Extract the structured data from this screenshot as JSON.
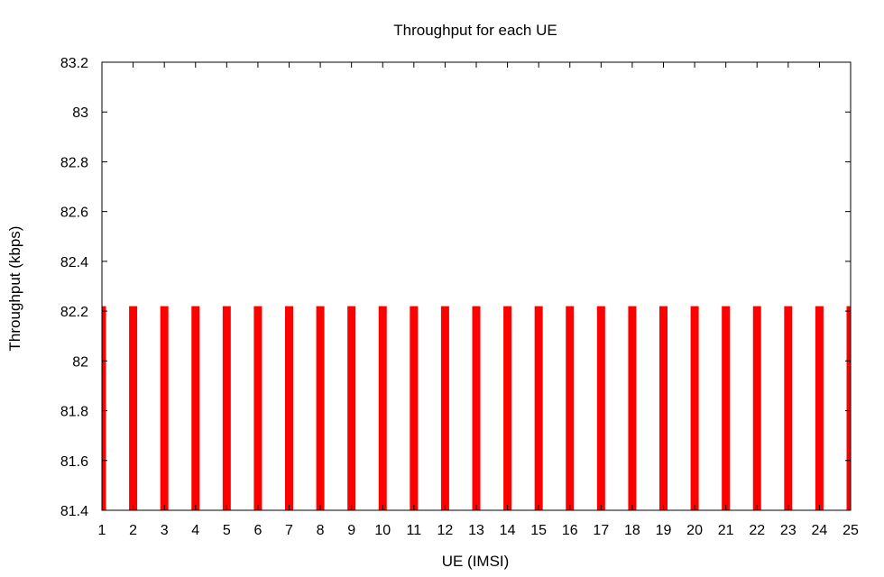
{
  "chart_data": {
    "type": "bar",
    "title": "Throughput for each UE",
    "xlabel": "UE (IMSI)",
    "ylabel": "Throughput (kbps)",
    "categories": [
      "1",
      "2",
      "3",
      "4",
      "5",
      "6",
      "7",
      "8",
      "9",
      "10",
      "11",
      "12",
      "13",
      "14",
      "15",
      "16",
      "17",
      "18",
      "19",
      "20",
      "21",
      "22",
      "23",
      "24",
      "25"
    ],
    "x": [
      1,
      2,
      3,
      4,
      5,
      6,
      7,
      8,
      9,
      10,
      11,
      12,
      13,
      14,
      15,
      16,
      17,
      18,
      19,
      20,
      21,
      22,
      23,
      24,
      25
    ],
    "values": [
      82.22,
      82.22,
      82.22,
      82.22,
      82.22,
      82.22,
      82.22,
      82.22,
      82.22,
      82.22,
      82.22,
      82.22,
      82.22,
      82.22,
      82.22,
      82.22,
      82.22,
      82.22,
      82.22,
      82.22,
      82.22,
      82.22,
      82.22,
      82.22,
      82.22
    ],
    "xlim": [
      1,
      25
    ],
    "ylim": [
      81.4,
      83.2
    ],
    "yticks": [
      81.4,
      81.6,
      81.8,
      82,
      82.2,
      82.4,
      82.6,
      82.8,
      83,
      83.2
    ],
    "ytick_labels": [
      "81.4",
      "81.6",
      "81.8",
      "82",
      "82.2",
      "82.4",
      "82.6",
      "82.8",
      "83",
      "83.2"
    ],
    "grid": false,
    "legend": "none",
    "bar_color": "#ff0000"
  }
}
